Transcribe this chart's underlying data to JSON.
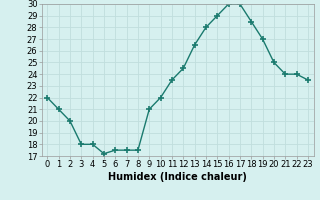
{
  "x": [
    0,
    1,
    2,
    3,
    4,
    5,
    6,
    7,
    8,
    9,
    10,
    11,
    12,
    13,
    14,
    15,
    16,
    17,
    18,
    19,
    20,
    21,
    22,
    23
  ],
  "y": [
    22.0,
    21.0,
    20.0,
    18.0,
    18.0,
    17.2,
    17.5,
    17.5,
    17.5,
    21.0,
    22.0,
    23.5,
    24.5,
    26.5,
    28.0,
    29.0,
    30.0,
    30.0,
    28.5,
    27.0,
    25.0,
    24.0,
    24.0,
    23.5
  ],
  "xlabel": "Humidex (Indice chaleur)",
  "ylim": [
    17,
    30
  ],
  "xlim": [
    -0.5,
    23.5
  ],
  "yticks": [
    17,
    18,
    19,
    20,
    21,
    22,
    23,
    24,
    25,
    26,
    27,
    28,
    29,
    30
  ],
  "xticks": [
    0,
    1,
    2,
    3,
    4,
    5,
    6,
    7,
    8,
    9,
    10,
    11,
    12,
    13,
    14,
    15,
    16,
    17,
    18,
    19,
    20,
    21,
    22,
    23
  ],
  "line_color": "#1a7a6e",
  "marker": "+",
  "marker_size": 4,
  "bg_color": "#d6f0ef",
  "grid_color": "#c0dedd",
  "xlabel_fontsize": 7,
  "tick_fontsize": 6,
  "linewidth": 1.0
}
